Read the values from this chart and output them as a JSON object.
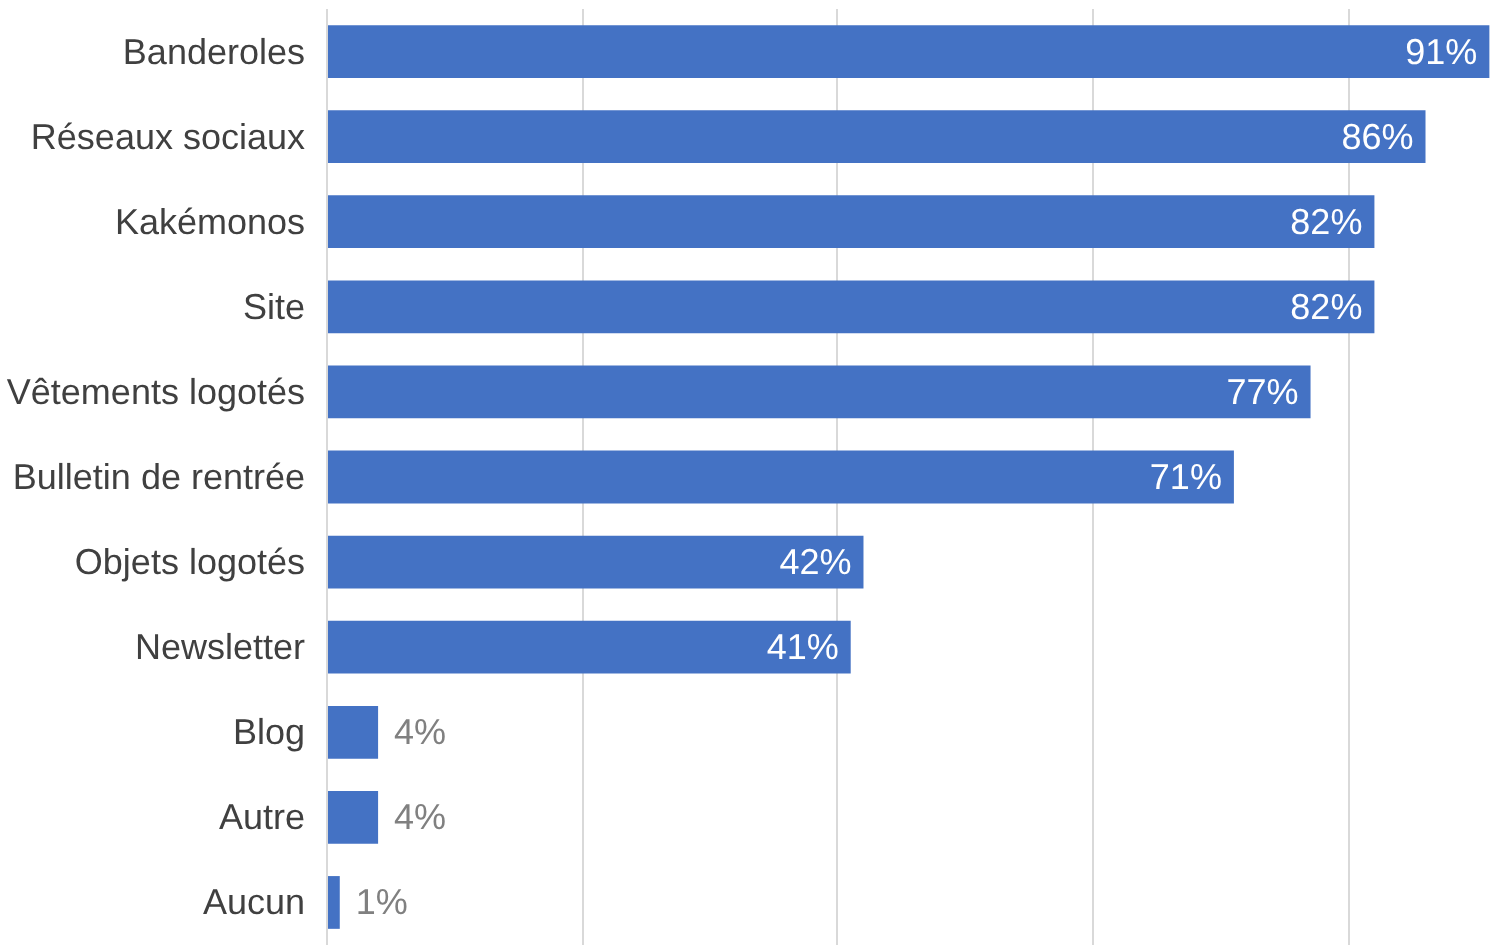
{
  "chart_data": {
    "type": "bar",
    "orientation": "horizontal",
    "categories": [
      "Banderoles",
      "Réseaux sociaux",
      "Kakémonos",
      "Site",
      "Vêtements logotés",
      "Bulletin de rentrée",
      "Objets logotés",
      "Newsletter",
      "Blog",
      "Autre",
      "Aucun"
    ],
    "values": [
      91,
      86,
      82,
      82,
      77,
      71,
      42,
      41,
      4,
      4,
      1
    ],
    "value_labels": [
      "91%",
      "86%",
      "82%",
      "82%",
      "77%",
      "71%",
      "42%",
      "41%",
      "4%",
      "4%",
      "1%"
    ],
    "color": "#4472c4",
    "xticks": [
      {
        "value": 0,
        "label": null
      },
      {
        "value": 20,
        "label": null
      },
      {
        "value": 40,
        "label": null
      },
      {
        "value": 60,
        "label": null
      },
      {
        "value": 80,
        "label": null
      }
    ],
    "grid": "x",
    "tick_labels": "y"
  }
}
